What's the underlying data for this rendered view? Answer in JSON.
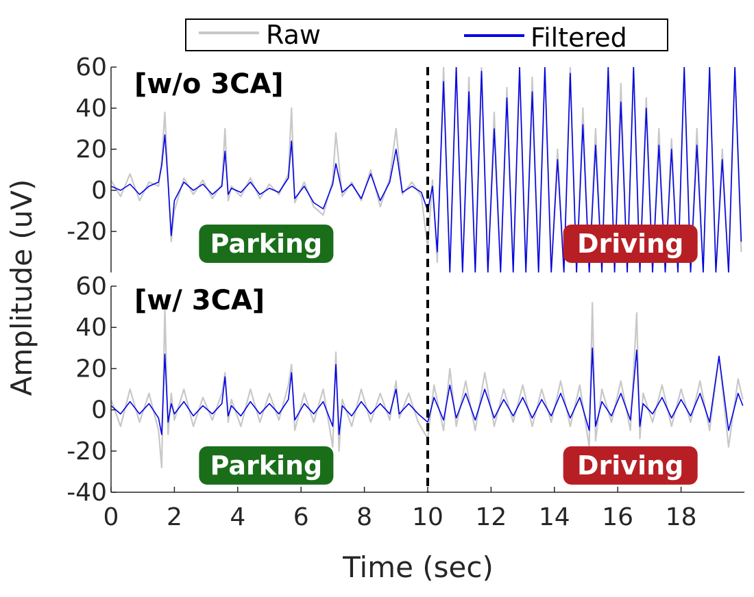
{
  "chart_data": {
    "type": "line",
    "legend": {
      "placement": "top",
      "entries": [
        {
          "label": "Raw",
          "color": "#c8c8c8"
        },
        {
          "label": "Filtered",
          "color": "#0000e6"
        }
      ]
    },
    "xlabel": "Time (sec)",
    "ylabel": "Amplitude (uV)",
    "xlim": [
      0,
      20
    ],
    "xticks": [
      0,
      2,
      4,
      6,
      8,
      10,
      12,
      14,
      16,
      18
    ],
    "divider_x": 10,
    "grid": false,
    "panels": [
      {
        "title": "[w/o 3CA]",
        "ylim": [
          -40,
          60
        ],
        "yticks": [
          60,
          40,
          20,
          0,
          -20
        ],
        "labels": [
          {
            "text": "Parking",
            "x": 4.9,
            "y": -26,
            "color": "#1a6e1a"
          },
          {
            "text": "Driving",
            "x": 16.4,
            "y": -26,
            "color": "#b71f24"
          }
        ],
        "series": [
          {
            "name": "Raw",
            "x": [
              0,
              0.3,
              0.6,
              0.9,
              1.2,
              1.5,
              1.6,
              1.7,
              1.8,
              1.9,
              2.0,
              2.3,
              2.6,
              2.9,
              3.2,
              3.5,
              3.6,
              3.7,
              3.8,
              4.1,
              4.4,
              4.7,
              5.0,
              5.3,
              5.6,
              5.7,
              5.8,
              6.1,
              6.4,
              6.7,
              7.0,
              7.1,
              7.3,
              7.6,
              7.9,
              8.2,
              8.5,
              8.8,
              9.0,
              9.2,
              9.5,
              9.8,
              10.0,
              10.15,
              10.3,
              10.5,
              10.7,
              10.9,
              11.1,
              11.3,
              11.5,
              11.7,
              11.9,
              12.1,
              12.3,
              12.5,
              12.7,
              12.9,
              13.1,
              13.3,
              13.5,
              13.7,
              13.9,
              14.1,
              14.3,
              14.5,
              14.7,
              14.9,
              15.1,
              15.3,
              15.5,
              15.7,
              15.9,
              16.1,
              16.3,
              16.5,
              16.7,
              16.9,
              17.1,
              17.3,
              17.5,
              17.7,
              17.9,
              18.1,
              18.3,
              18.5,
              18.7,
              18.9,
              19.1,
              19.3,
              19.5,
              19.7,
              19.9
            ],
            "y": [
              5,
              -3,
              8,
              -5,
              4,
              2,
              15,
              38,
              5,
              -25,
              -10,
              6,
              -2,
              5,
              -4,
              3,
              30,
              -5,
              2,
              -3,
              6,
              -4,
              3,
              -2,
              8,
              40,
              -6,
              4,
              -8,
              -12,
              5,
              28,
              -3,
              4,
              -5,
              10,
              -8,
              6,
              30,
              -2,
              4,
              -3,
              -28,
              5,
              -35,
              60,
              -40,
              60,
              -40,
              55,
              -40,
              60,
              -40,
              38,
              -40,
              50,
              -40,
              60,
              -40,
              55,
              -40,
              60,
              -40,
              20,
              -40,
              60,
              -40,
              40,
              -40,
              30,
              -40,
              60,
              -40,
              52,
              -40,
              60,
              -40,
              45,
              -40,
              30,
              -40,
              25,
              -40,
              60,
              -40,
              30,
              -40,
              60,
              -40,
              20,
              -40,
              60,
              -30
            ]
          },
          {
            "name": "Filtered",
            "x": [
              0,
              0.3,
              0.6,
              0.9,
              1.2,
              1.5,
              1.6,
              1.7,
              1.8,
              1.9,
              2.0,
              2.3,
              2.6,
              2.9,
              3.2,
              3.5,
              3.6,
              3.7,
              3.8,
              4.1,
              4.4,
              4.7,
              5.0,
              5.3,
              5.6,
              5.7,
              5.8,
              6.1,
              6.4,
              6.7,
              7.0,
              7.1,
              7.3,
              7.6,
              7.9,
              8.2,
              8.5,
              8.8,
              9.0,
              9.2,
              9.5,
              9.8,
              10.0,
              10.15,
              10.3,
              10.5,
              10.7,
              10.9,
              11.1,
              11.3,
              11.5,
              11.7,
              11.9,
              12.1,
              12.3,
              12.5,
              12.7,
              12.9,
              13.1,
              13.3,
              13.5,
              13.7,
              13.9,
              14.1,
              14.3,
              14.5,
              14.7,
              14.9,
              15.1,
              15.3,
              15.5,
              15.7,
              15.9,
              16.1,
              16.3,
              16.5,
              16.7,
              16.9,
              17.1,
              17.3,
              17.5,
              17.7,
              17.9,
              18.1,
              18.3,
              18.5,
              18.7,
              18.9,
              19.1,
              19.3,
              19.5,
              19.7,
              19.9
            ],
            "y": [
              2,
              0,
              3,
              -2,
              2,
              4,
              12,
              27,
              4,
              -22,
              -5,
              4,
              0,
              3,
              -2,
              2,
              19,
              -2,
              1,
              -1,
              4,
              -2,
              1,
              -1,
              6,
              24,
              -4,
              2,
              -6,
              -9,
              3,
              13,
              -1,
              3,
              -4,
              8,
              -5,
              4,
              20,
              -1,
              2,
              -1,
              -10,
              2,
              -30,
              53,
              -40,
              60,
              -40,
              48,
              -40,
              58,
              -40,
              30,
              -40,
              45,
              -40,
              60,
              -40,
              48,
              -40,
              60,
              -40,
              15,
              -40,
              57,
              -40,
              32,
              -40,
              22,
              -40,
              60,
              -40,
              43,
              -40,
              60,
              -40,
              40,
              -40,
              22,
              -40,
              20,
              -40,
              60,
              -40,
              22,
              -40,
              60,
              -40,
              15,
              -40,
              60,
              -25
            ]
          }
        ]
      },
      {
        "title": "[w/ 3CA]",
        "ylim": [
          -40,
          60
        ],
        "yticks": [
          60,
          40,
          20,
          0,
          -20,
          -40
        ],
        "labels": [
          {
            "text": "Parking",
            "x": 4.9,
            "y": -27,
            "color": "#1a6e1a"
          },
          {
            "text": "Driving",
            "x": 16.4,
            "y": -27,
            "color": "#b71f24"
          }
        ],
        "series": [
          {
            "name": "Raw",
            "x": [
              0,
              0.3,
              0.6,
              0.9,
              1.2,
              1.5,
              1.6,
              1.7,
              1.8,
              1.9,
              2.0,
              2.3,
              2.6,
              2.9,
              3.2,
              3.5,
              3.6,
              3.7,
              3.8,
              4.1,
              4.4,
              4.7,
              5.0,
              5.3,
              5.6,
              5.7,
              5.8,
              6.1,
              6.4,
              6.7,
              7.0,
              7.1,
              7.2,
              7.3,
              7.6,
              7.9,
              8.2,
              8.5,
              8.8,
              9.0,
              9.1,
              9.4,
              9.7,
              10.0,
              10.2,
              10.5,
              10.7,
              10.9,
              11.2,
              11.5,
              11.8,
              12.1,
              12.4,
              12.7,
              13.0,
              13.3,
              13.6,
              13.9,
              14.2,
              14.5,
              14.8,
              15.1,
              15.2,
              15.3,
              15.5,
              15.8,
              16.1,
              16.4,
              16.6,
              16.7,
              16.8,
              17.1,
              17.4,
              17.7,
              18.0,
              18.3,
              18.6,
              18.9,
              19.2,
              19.5,
              19.8,
              19.95
            ],
            "y": [
              5,
              -8,
              10,
              -6,
              8,
              -10,
              -28,
              50,
              -12,
              8,
              -5,
              10,
              -8,
              6,
              -5,
              8,
              18,
              -6,
              5,
              -8,
              10,
              -6,
              8,
              -5,
              12,
              22,
              -10,
              8,
              -6,
              10,
              -18,
              28,
              -20,
              5,
              -8,
              10,
              -6,
              8,
              -5,
              14,
              -4,
              8,
              -6,
              -14,
              12,
              -10,
              20,
              -8,
              14,
              -10,
              18,
              -8,
              10,
              -6,
              12,
              -8,
              10,
              -6,
              14,
              -8,
              12,
              -18,
              52,
              -15,
              10,
              -6,
              14,
              -10,
              47,
              -14,
              8,
              -6,
              12,
              -8,
              10,
              -6,
              14,
              -10,
              26,
              -18,
              15,
              5
            ]
          },
          {
            "name": "Filtered",
            "x": [
              0,
              0.3,
              0.6,
              0.9,
              1.2,
              1.5,
              1.6,
              1.7,
              1.8,
              1.9,
              2.0,
              2.3,
              2.6,
              2.9,
              3.2,
              3.5,
              3.6,
              3.7,
              3.8,
              4.1,
              4.4,
              4.7,
              5.0,
              5.3,
              5.6,
              5.7,
              5.8,
              6.1,
              6.4,
              6.7,
              7.0,
              7.1,
              7.2,
              7.3,
              7.6,
              7.9,
              8.2,
              8.5,
              8.8,
              9.0,
              9.1,
              9.4,
              9.7,
              10.0,
              10.2,
              10.5,
              10.7,
              10.9,
              11.2,
              11.5,
              11.8,
              12.1,
              12.4,
              12.7,
              13.0,
              13.3,
              13.6,
              13.9,
              14.2,
              14.5,
              14.8,
              15.1,
              15.2,
              15.3,
              15.5,
              15.8,
              16.1,
              16.4,
              16.6,
              16.7,
              16.8,
              17.1,
              17.4,
              17.7,
              18.0,
              18.3,
              18.6,
              18.9,
              19.2,
              19.5,
              19.8,
              19.95
            ],
            "y": [
              2,
              -2,
              4,
              -2,
              3,
              -4,
              -12,
              27,
              -6,
              3,
              -2,
              4,
              -3,
              2,
              -2,
              3,
              16,
              -3,
              2,
              -3,
              4,
              -2,
              3,
              -2,
              5,
              18,
              -5,
              3,
              -2,
              4,
              -8,
              22,
              -12,
              2,
              -3,
              4,
              -2,
              3,
              -2,
              10,
              -2,
              3,
              -2,
              -6,
              6,
              -5,
              12,
              -4,
              8,
              -5,
              10,
              -4,
              5,
              -3,
              6,
              -4,
              5,
              -3,
              8,
              -4,
              6,
              -10,
              30,
              -8,
              4,
              -3,
              8,
              -5,
              29,
              -8,
              3,
              -2,
              6,
              -4,
              5,
              -3,
              8,
              -6,
              26,
              -10,
              8,
              2
            ]
          }
        ]
      }
    ]
  }
}
